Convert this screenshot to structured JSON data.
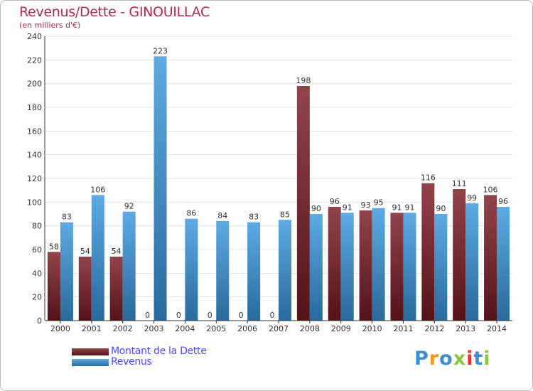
{
  "chart_data": {
    "type": "bar",
    "title": "Revenus/Dette - GINOUILLAC",
    "subtitle": "(en milliers d'€)",
    "xlabel": "",
    "ylabel": "",
    "ylim": [
      0,
      240
    ],
    "yticks": [
      0,
      20,
      40,
      60,
      80,
      100,
      120,
      140,
      160,
      180,
      200,
      220,
      240
    ],
    "grid": true,
    "categories": [
      "2000",
      "2001",
      "2002",
      "2003",
      "2004",
      "2005",
      "2006",
      "2007",
      "2008",
      "2009",
      "2010",
      "2011",
      "2012",
      "2013",
      "2014"
    ],
    "series": [
      {
        "name": "Montant de la Dette",
        "color": "#7a1a24",
        "values": [
          58,
          54,
          54,
          0,
          0,
          0,
          0,
          0,
          198,
          96,
          93,
          91,
          116,
          111,
          106
        ]
      },
      {
        "name": "Revenus",
        "color": "#3a97de",
        "values": [
          83,
          106,
          92,
          223,
          86,
          84,
          83,
          85,
          90,
          91,
          95,
          91,
          90,
          99,
          96
        ]
      }
    ],
    "legend_position": "bottom-left"
  },
  "brand": {
    "letters": [
      "P",
      "r",
      "o",
      "x",
      "i",
      "t",
      "i"
    ],
    "colors": [
      "#3a8fd6",
      "#f39a1e",
      "#3a8fd6",
      "#8cc63e",
      "#e8322d",
      "#3a8fd6",
      "#8cc63e"
    ]
  }
}
